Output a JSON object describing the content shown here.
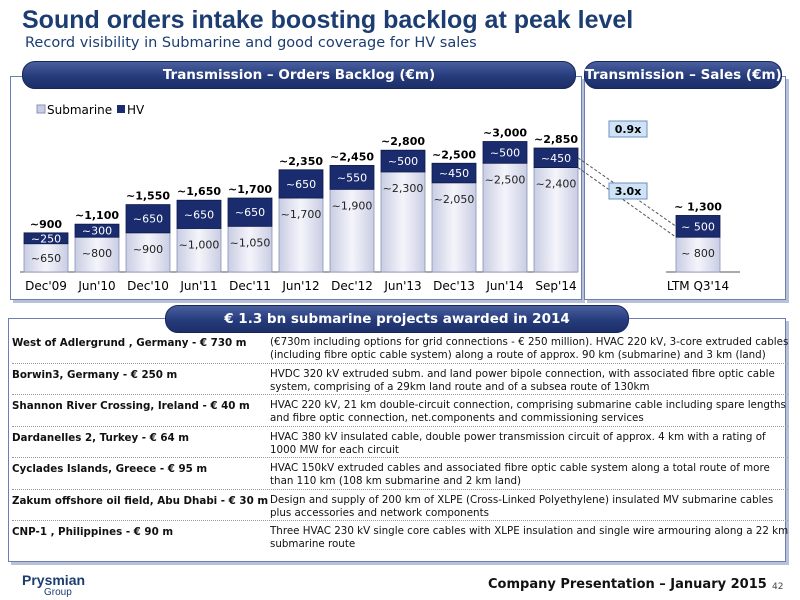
{
  "header": {
    "title": "Sound orders intake boosting backlog at peak level",
    "subtitle": "Record visibility in Submarine and good coverage for HV sales"
  },
  "backlog_panel": {
    "title": "Transmission – Orders Backlog (€m)"
  },
  "sales_panel": {
    "title": "Transmission – Sales (€m)"
  },
  "projects_panel": {
    "title": "€ 1.3 bn submarine projects awarded in 2014"
  },
  "chart_data": {
    "type": "bar",
    "stacked": true,
    "categories": [
      "Dec'09",
      "Jun'10",
      "Dec'10",
      "Jun'11",
      "Dec'11",
      "Jun'12",
      "Dec'12",
      "Jun'13",
      "Dec'13",
      "Jun'14",
      "Sep'14",
      "LTM Q3'14"
    ],
    "series": [
      {
        "name": "Submarine",
        "color": "#e5e7f2",
        "values": [
          650,
          800,
          900,
          1000,
          1050,
          1700,
          1900,
          2300,
          2050,
          2500,
          2400,
          800
        ],
        "labels": [
          "~650",
          "~800",
          "~900",
          "~1,000",
          "~1,050",
          "~1,700",
          "~1,900",
          "~2,300",
          "~2,050",
          "~2,500",
          "~2,400",
          "~ 800"
        ]
      },
      {
        "name": "HV",
        "color": "#1a2b6e",
        "values": [
          250,
          300,
          650,
          650,
          650,
          650,
          550,
          500,
          450,
          500,
          450,
          500
        ],
        "labels": [
          "~250",
          "~300",
          "~650",
          "~650",
          "~650",
          "~650",
          "~550",
          "~500",
          "~450",
          "~500",
          "~450",
          "~ 500"
        ]
      }
    ],
    "totals": [
      "~900",
      "~1,100",
      "~1,550",
      "~1,650",
      "~1,700",
      "~2,350",
      "~2,450",
      "~2,800",
      "~2,500",
      "~3,000",
      "~2,850",
      "~ 1,300"
    ],
    "ratios": [
      {
        "label": "0.9x",
        "series": "HV"
      },
      {
        "label": "3.0x",
        "series": "Submarine"
      }
    ],
    "ylim": [
      0,
      3100
    ],
    "legend": "top-left",
    "xlabel": "",
    "ylabel": ""
  },
  "projects": [
    {
      "name": "West of Adlergrund , Germany - € 730 m",
      "desc": "(€730m including options for grid connections - € 250 million). HVAC 220 kV, 3-core extruded cables (including fibre optic cable system) along a route of approx. 90 km (submarine) and 3 km (land)"
    },
    {
      "name": "Borwin3, Germany - € 250 m",
      "desc": "HVDC 320 kV extruded subm. and land power bipole connection, with associated fibre optic cable system, comprising of a 29km land route and of a subsea route of 130km"
    },
    {
      "name": "Shannon River Crossing, Ireland - € 40 m",
      "desc": "HVAC 220 kV, 21 km double-circuit connection, comprising submarine cable including spare lengths and fibre optic connection, net.components and commissioning services"
    },
    {
      "name": "Dardanelles 2, Turkey - € 64 m",
      "desc": "HVAC 380 kV insulated cable, double power transmission circuit of approx. 4 km with a rating of 1000 MW for each circuit"
    },
    {
      "name": "Cyclades Islands, Greece - € 95 m",
      "desc": "HVAC 150kV extruded cables and associated fibre optic cable system along a total route of more than 110 km (108 km submarine and 2 km land)"
    },
    {
      "name": "Zakum offshore oil field, Abu Dhabi - € 30 m",
      "desc": "Design and supply of 200 km of XLPE (Cross-Linked Polyethylene) insulated MV submarine cables plus accessories and network components"
    },
    {
      "name": "CNP-1 , Philippines - € 90 m",
      "desc": "Three HVAC  230 kV single core cables with XLPE insulation and single wire armouring along a 22 km submarine route"
    }
  ],
  "footer": {
    "logo_top": "Prysmian",
    "logo_bottom": "Group",
    "text": "Company Presentation – January 2015",
    "page": "42"
  }
}
